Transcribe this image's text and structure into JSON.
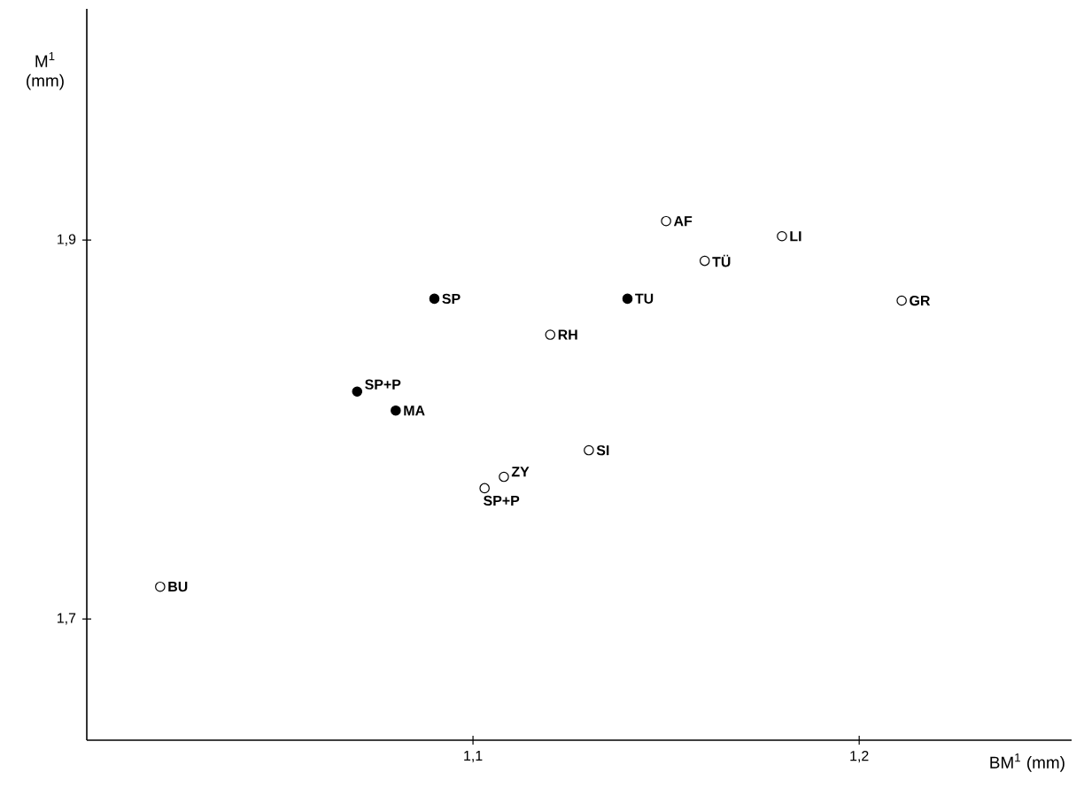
{
  "chart_data": {
    "type": "scatter",
    "xlabel": "BM$^{1}$ (mm)",
    "ylabel": "M$^{1}$ (mm)",
    "xlim": [
      1.0,
      1.255
    ],
    "ylim": [
      1.636,
      2.022
    ],
    "xticks": [
      {
        "value": 1.1,
        "label": "1,1"
      },
      {
        "value": 1.2,
        "label": "1,2"
      }
    ],
    "yticks": [
      {
        "value": 1.7,
        "label": "1,7"
      },
      {
        "value": 1.9,
        "label": "1,9"
      }
    ],
    "marker": "circle",
    "grid": false,
    "series": [
      {
        "color": "#000000",
        "x": [
          1.07,
          1.08,
          1.09,
          1.14
        ],
        "values": [
          1.82,
          1.81,
          1.869,
          1.869
        ]
      },
      {
        "color": "#ffffff",
        "x": [
          1.019,
          1.103,
          1.108,
          1.12,
          1.13,
          1.15,
          1.16,
          1.18,
          1.211
        ],
        "values": [
          1.717,
          1.769,
          1.775,
          1.85,
          1.789,
          1.91,
          1.889,
          1.902,
          1.868
        ]
      }
    ],
    "annotations": [
      {
        "text": "SP+P",
        "x": 1.07,
        "y": 1.82
      },
      {
        "text": "MA",
        "x": 1.08,
        "y": 1.81
      },
      {
        "text": "SP",
        "x": 1.09,
        "y": 1.869
      },
      {
        "text": "TU",
        "x": 1.14,
        "y": 1.869
      },
      {
        "text": "BU",
        "x": 1.019,
        "y": 1.717
      },
      {
        "text": "SP+P",
        "x": 1.103,
        "y": 1.769
      },
      {
        "text": "ZY",
        "x": 1.108,
        "y": 1.775
      },
      {
        "text": "RH",
        "x": 1.12,
        "y": 1.85
      },
      {
        "text": "SI",
        "x": 1.13,
        "y": 1.789
      },
      {
        "text": "AF",
        "x": 1.15,
        "y": 1.91
      },
      {
        "text": "TÜ",
        "x": 1.16,
        "y": 1.889
      },
      {
        "text": "LI",
        "x": 1.18,
        "y": 1.902
      },
      {
        "text": "GR",
        "x": 1.211,
        "y": 1.868
      }
    ]
  }
}
